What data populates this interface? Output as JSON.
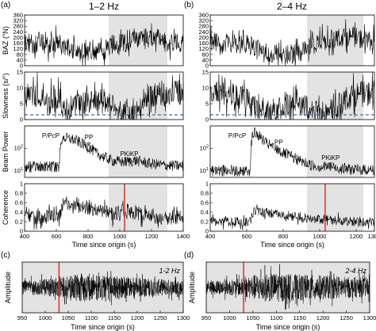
{
  "panel_labels": [
    "(a)",
    "(b)",
    "(c)",
    "(d)"
  ],
  "band_titles": [
    "1–2 Hz",
    "2–4 Hz"
  ],
  "colors": {
    "trace": "#000000",
    "shade": "#e3e3e3",
    "marker": "#d6342c",
    "dashed": "#3a6fb0"
  },
  "chart_data": [
    {
      "id": "a-baz",
      "type": "line",
      "ylabel": "BAZ (°N)",
      "ylim": [
        0,
        360
      ],
      "yticks": [
        0,
        40,
        80,
        120,
        160,
        200,
        240,
        280,
        320,
        360
      ],
      "xlim": [
        400,
        1400
      ],
      "shade": [
        930,
        1300
      ],
      "x": [
        400,
        450,
        500,
        550,
        600,
        650,
        700,
        750,
        800,
        850,
        900,
        950,
        1000,
        1050,
        1100,
        1150,
        1200,
        1250,
        1300,
        1350,
        1400
      ],
      "y": [
        170,
        150,
        160,
        140,
        165,
        130,
        120,
        95,
        90,
        85,
        110,
        150,
        170,
        160,
        190,
        210,
        200,
        180,
        160,
        170,
        160
      ],
      "noise": 70
    },
    {
      "id": "a-slow",
      "type": "line",
      "ylabel": "Slowness (s/°)",
      "ylim": [
        0,
        15
      ],
      "yticks": [
        0,
        5,
        10,
        15
      ],
      "dashed_y": 1.5,
      "xlim": [
        400,
        1400
      ],
      "shade": [
        930,
        1300
      ],
      "x": [
        400,
        500,
        600,
        650,
        700,
        800,
        900,
        950,
        1000,
        1050,
        1100,
        1150,
        1200,
        1250,
        1300,
        1350,
        1400
      ],
      "y": [
        8,
        8,
        7,
        4,
        4,
        5,
        6,
        4,
        2,
        2,
        3,
        6,
        8,
        8,
        8,
        9,
        8
      ],
      "noise": 4
    },
    {
      "id": "a-beam",
      "type": "line",
      "ylabel": "Beam Power",
      "yscale": "log",
      "ylim": [
        5,
        1000
      ],
      "yticks": [
        10,
        100
      ],
      "xlim": [
        400,
        1400
      ],
      "shade": [
        930,
        1300
      ],
      "x": [
        400,
        600,
        620,
        630,
        640,
        700,
        800,
        850,
        900,
        950,
        1000,
        1050,
        1100,
        1150,
        1200,
        1300,
        1400
      ],
      "y": [
        15,
        15,
        15,
        200,
        300,
        250,
        110,
        60,
        40,
        28,
        25,
        25,
        28,
        24,
        20,
        17,
        16
      ],
      "noise": 0.25,
      "annotations": [
        {
          "text": "P/PcP",
          "x": 565,
          "y": 300
        },
        {
          "text": "PP",
          "x": 805,
          "y": 250,
          "arrow_to": [
            805,
            130
          ]
        },
        {
          "text": "PKiKP",
          "x": 1060,
          "y": 45,
          "arrow_to": [
            1060,
            26
          ]
        }
      ]
    },
    {
      "id": "a-coh",
      "type": "line",
      "ylabel": "Coherence",
      "ylim": [
        0,
        1.0
      ],
      "yticks": [
        0,
        0.2,
        0.4,
        0.6,
        0.8,
        1.0
      ],
      "xlim": [
        400,
        1400
      ],
      "shade": [
        930,
        1300
      ],
      "marker_x": 1030,
      "xticks": [
        400,
        600,
        800,
        1000,
        1200,
        1400
      ],
      "xlabel": "Time since origin (s)",
      "x": [
        400,
        500,
        600,
        620,
        640,
        700,
        800,
        900,
        950,
        1000,
        1050,
        1100,
        1200,
        1300,
        1400
      ],
      "y": [
        0.3,
        0.3,
        0.3,
        0.3,
        0.6,
        0.55,
        0.5,
        0.42,
        0.35,
        0.4,
        0.45,
        0.38,
        0.3,
        0.28,
        0.3
      ],
      "noise": 0.15
    },
    {
      "id": "b-baz",
      "type": "line",
      "ylabel": "",
      "ylim": [
        0,
        360
      ],
      "yticks": [
        0,
        40,
        80,
        120,
        160,
        200,
        240,
        280,
        320,
        360
      ],
      "xlim": [
        400,
        1300
      ],
      "shade": [
        930,
        1240
      ],
      "x": [
        400,
        450,
        500,
        550,
        600,
        650,
        700,
        750,
        800,
        850,
        900,
        950,
        1000,
        1050,
        1100,
        1150,
        1200,
        1250,
        1300
      ],
      "y": [
        170,
        160,
        165,
        150,
        160,
        120,
        95,
        85,
        80,
        85,
        100,
        150,
        170,
        180,
        200,
        210,
        200,
        185,
        170
      ],
      "noise": 70
    },
    {
      "id": "b-slow",
      "type": "line",
      "ylabel": "",
      "ylim": [
        0,
        15
      ],
      "yticks": [
        0,
        5,
        10,
        15
      ],
      "dashed_y": 1.5,
      "xlim": [
        400,
        1300
      ],
      "shade": [
        930,
        1240
      ],
      "x": [
        400,
        500,
        600,
        650,
        700,
        800,
        900,
        950,
        1000,
        1050,
        1100,
        1150,
        1200,
        1250,
        1300
      ],
      "y": [
        8,
        8,
        7,
        3,
        3,
        4,
        5,
        3,
        2,
        2,
        4,
        7,
        8,
        8,
        9
      ],
      "noise": 4
    },
    {
      "id": "b-beam",
      "type": "line",
      "ylabel": "",
      "yscale": "log",
      "ylim": [
        5,
        1000
      ],
      "yticks": [
        10,
        100
      ],
      "xlim": [
        400,
        1300
      ],
      "shade": [
        930,
        1240
      ],
      "x": [
        400,
        600,
        620,
        630,
        640,
        700,
        750,
        800,
        850,
        900,
        950,
        1000,
        1050,
        1100,
        1200,
        1300
      ],
      "y": [
        10,
        10,
        10,
        300,
        500,
        180,
        100,
        60,
        40,
        25,
        18,
        15,
        15,
        13,
        11,
        11
      ],
      "noise": 0.25,
      "annotations": [
        {
          "text": "P/PcP",
          "x": 548,
          "y": 300
        },
        {
          "text": "PP",
          "x": 775,
          "y": 150,
          "arrow_to": [
            775,
            70
          ]
        },
        {
          "text": "PKiKP",
          "x": 1060,
          "y": 30,
          "arrow_to": [
            1060,
            17
          ]
        }
      ]
    },
    {
      "id": "b-coh",
      "type": "line",
      "ylabel": "",
      "ylim": [
        0,
        1.0
      ],
      "yticks": [
        0,
        0.2,
        0.4,
        0.6,
        0.8,
        1.0
      ],
      "xlim": [
        400,
        1300
      ],
      "shade": [
        930,
        1240
      ],
      "marker_x": 1030,
      "xticks": [
        400,
        600,
        800,
        1000,
        1200,
        1300
      ],
      "xlabel": "Time since origin (s)",
      "x": [
        400,
        500,
        600,
        620,
        640,
        700,
        800,
        900,
        950,
        1000,
        1050,
        1100,
        1200,
        1300
      ],
      "y": [
        0.2,
        0.2,
        0.2,
        0.2,
        0.45,
        0.4,
        0.35,
        0.28,
        0.25,
        0.25,
        0.25,
        0.22,
        0.2,
        0.2
      ],
      "noise": 0.1
    },
    {
      "id": "c-wave",
      "type": "line",
      "ylabel": "Amplitude",
      "band_label": "1-2 Hz",
      "xlim": [
        950,
        1300
      ],
      "xticks": [
        950,
        1000,
        1050,
        1100,
        1150,
        1200,
        1250,
        1300
      ],
      "xlabel": "Time since origin (s)",
      "marker_x": 1030,
      "x": [
        950,
        1000,
        1050,
        1080,
        1100,
        1150,
        1200,
        1250,
        1300
      ],
      "envelope": [
        0.45,
        0.55,
        0.75,
        0.95,
        0.9,
        0.75,
        0.65,
        0.55,
        0.5
      ]
    },
    {
      "id": "d-wave",
      "type": "line",
      "ylabel": "Amplitude",
      "band_label": "2-4 Hz",
      "xlim": [
        950,
        1300
      ],
      "xticks": [
        950,
        1000,
        1050,
        1100,
        1150,
        1200,
        1250,
        1300
      ],
      "xlabel": "Time since origin (s)",
      "marker_x": 1030,
      "x": [
        950,
        1000,
        1030,
        1060,
        1100,
        1150,
        1200,
        1250,
        1300
      ],
      "envelope": [
        0.45,
        0.5,
        0.6,
        0.9,
        0.95,
        0.85,
        0.8,
        0.7,
        0.65
      ]
    }
  ]
}
